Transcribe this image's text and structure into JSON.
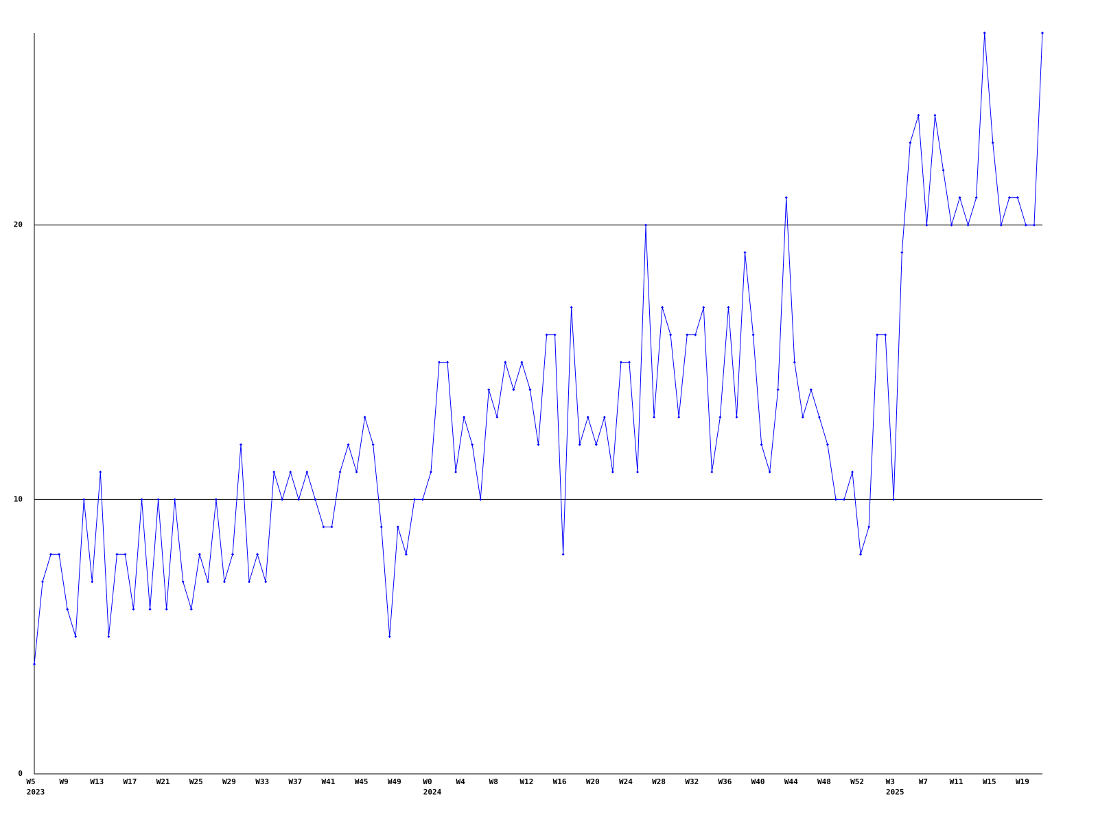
{
  "chart_data": {
    "type": "line",
    "categories": [
      "W5",
      null,
      null,
      null,
      "W9",
      null,
      null,
      null,
      "W13",
      null,
      null,
      null,
      "W17",
      null,
      null,
      null,
      "W21",
      null,
      null,
      null,
      "W25",
      null,
      null,
      null,
      "W29",
      null,
      null,
      null,
      "W33",
      null,
      null,
      null,
      "W37",
      null,
      null,
      null,
      "W41",
      null,
      null,
      null,
      "W45",
      null,
      null,
      null,
      "W49",
      null,
      null,
      null,
      "W0",
      null,
      null,
      null,
      "W4",
      null,
      null,
      null,
      "W8",
      null,
      null,
      null,
      "W12",
      null,
      null,
      null,
      "W16",
      null,
      null,
      null,
      "W20",
      null,
      null,
      null,
      "W24",
      null,
      null,
      null,
      "W28",
      null,
      null,
      null,
      "W32",
      null,
      null,
      null,
      "W36",
      null,
      null,
      null,
      "W40",
      null,
      null,
      null,
      "W44",
      null,
      null,
      null,
      "W48",
      null,
      null,
      null,
      "W52",
      null,
      null,
      null,
      "W3",
      null,
      null,
      null,
      "W7",
      null,
      null,
      null,
      "W11",
      null,
      null,
      null,
      "W15",
      null,
      null,
      null,
      "W19",
      null,
      null
    ],
    "years": [
      "2023",
      null,
      null,
      null,
      null,
      null,
      null,
      null,
      null,
      null,
      null,
      null,
      null,
      null,
      null,
      null,
      null,
      null,
      null,
      null,
      null,
      null,
      null,
      null,
      null,
      null,
      null,
      null,
      null,
      null,
      null,
      null,
      null,
      null,
      null,
      null,
      null,
      null,
      null,
      null,
      null,
      null,
      null,
      null,
      null,
      null,
      null,
      null,
      "2024",
      null,
      null,
      null,
      null,
      null,
      null,
      null,
      null,
      null,
      null,
      null,
      null,
      null,
      null,
      null,
      null,
      null,
      null,
      null,
      null,
      null,
      null,
      null,
      null,
      null,
      null,
      null,
      null,
      null,
      null,
      null,
      null,
      null,
      null,
      null,
      null,
      null,
      null,
      null,
      null,
      null,
      null,
      null,
      null,
      null,
      null,
      null,
      null,
      null,
      null,
      null,
      null,
      null,
      null,
      null,
      "2025",
      null,
      null,
      null,
      null,
      null,
      null,
      null,
      null,
      null,
      null,
      null,
      null,
      null,
      null,
      null,
      null,
      null,
      null
    ],
    "series": [
      {
        "color": "#0000ff",
        "values": [
          4,
          7,
          8,
          8,
          6,
          5,
          10,
          7,
          11,
          5,
          8,
          8,
          6,
          10,
          6,
          10,
          6,
          10,
          7,
          6,
          8,
          7,
          10,
          7,
          8,
          12,
          7,
          8,
          7,
          11,
          10,
          11,
          10,
          11,
          10,
          9,
          9,
          11,
          12,
          11,
          13,
          12,
          9,
          5,
          9,
          8,
          10,
          10,
          11,
          15,
          15,
          11,
          13,
          12,
          10,
          14,
          13,
          15,
          14,
          15,
          14,
          12,
          16,
          16,
          8,
          17,
          12,
          13,
          12,
          13,
          11,
          15,
          15,
          11,
          20,
          13,
          17,
          16,
          13,
          16,
          16,
          17,
          11,
          13,
          17,
          13,
          19,
          16,
          12,
          11,
          14,
          21,
          15,
          13,
          14,
          13,
          12,
          10,
          10,
          11,
          8,
          9,
          16,
          16,
          10,
          19,
          23,
          24,
          20,
          24,
          22,
          20,
          21,
          20,
          21,
          27,
          23,
          20,
          21,
          21,
          20,
          20,
          27
        ]
      }
    ],
    "ylim": [
      0,
      27
    ],
    "yticks": [
      0,
      10,
      20
    ],
    "grid": true
  }
}
